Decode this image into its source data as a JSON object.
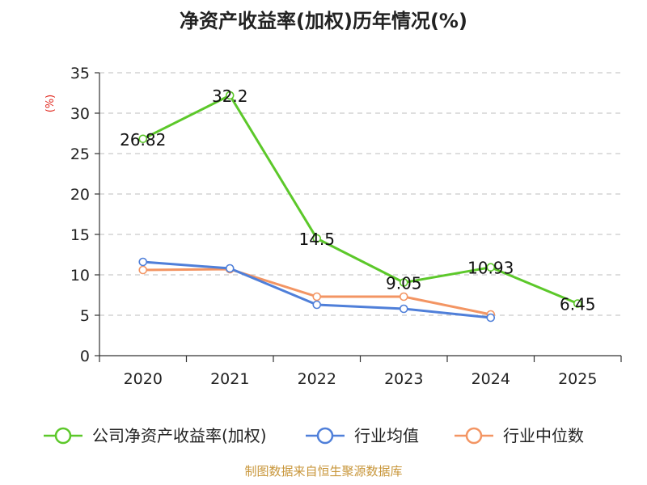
{
  "title": "净资产收益率(加权)历年情况(%)",
  "source": "制图数据来自恒生聚源数据库",
  "chart_data": {
    "type": "line",
    "title": "净资产收益率(加权)历年情况(%)",
    "ylabel": "(%)",
    "xlabel": "",
    "ylim": [
      0,
      35
    ],
    "yticks": [
      "0",
      "5",
      "10",
      "15",
      "20",
      "25",
      "30",
      "35"
    ],
    "categories": [
      "2020",
      "2021",
      "2022",
      "2023",
      "2024",
      "2025"
    ],
    "grid": true,
    "legend_position": "bottom",
    "series": [
      {
        "name": "公司净资产收益率(加权)",
        "color": "#5cc82a",
        "values": [
          26.82,
          32.2,
          14.5,
          9.05,
          10.93,
          6.45
        ],
        "labels": [
          "26.82",
          "32.2",
          "14.5",
          "9.05",
          "10.93",
          "6.45"
        ]
      },
      {
        "name": "行业均值",
        "color": "#4f7fd9",
        "values": [
          11.6,
          10.8,
          6.3,
          5.8,
          4.7,
          null
        ]
      },
      {
        "name": "行业中位数",
        "color": "#f39563",
        "values": [
          10.6,
          10.7,
          7.3,
          7.3,
          5.1,
          null
        ]
      }
    ]
  }
}
